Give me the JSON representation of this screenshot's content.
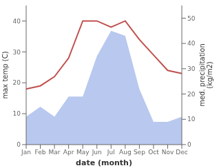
{
  "chart_data": {
    "type": "line",
    "categories": [
      "Jan",
      "Feb",
      "Mar",
      "Apr",
      "May",
      "Jun",
      "Jul",
      "Aug",
      "Sep",
      "Oct",
      "Nov",
      "Dec"
    ],
    "series": [
      {
        "type": "area",
        "axis": "y2",
        "color": "#b8c8ee",
        "values": [
          11,
          15,
          11,
          19,
          19,
          35,
          45,
          43,
          22,
          9,
          9,
          11
        ]
      },
      {
        "type": "line",
        "color": "#c0504d",
        "values": [
          18,
          19,
          22,
          28,
          40,
          40,
          38,
          40,
          34,
          29,
          24,
          23
        ]
      }
    ],
    "xlabel": "date (month)",
    "ylabel": "max temp (C)",
    "y2label": "med. precipitation\n(kg/m2)",
    "ylim": [
      0,
      45
    ],
    "yticks": [
      0,
      10,
      20,
      30,
      40
    ],
    "y2lim": [
      0,
      55
    ],
    "y2ticks": [
      0,
      10,
      20,
      30,
      40,
      50
    ],
    "grid": false
  }
}
